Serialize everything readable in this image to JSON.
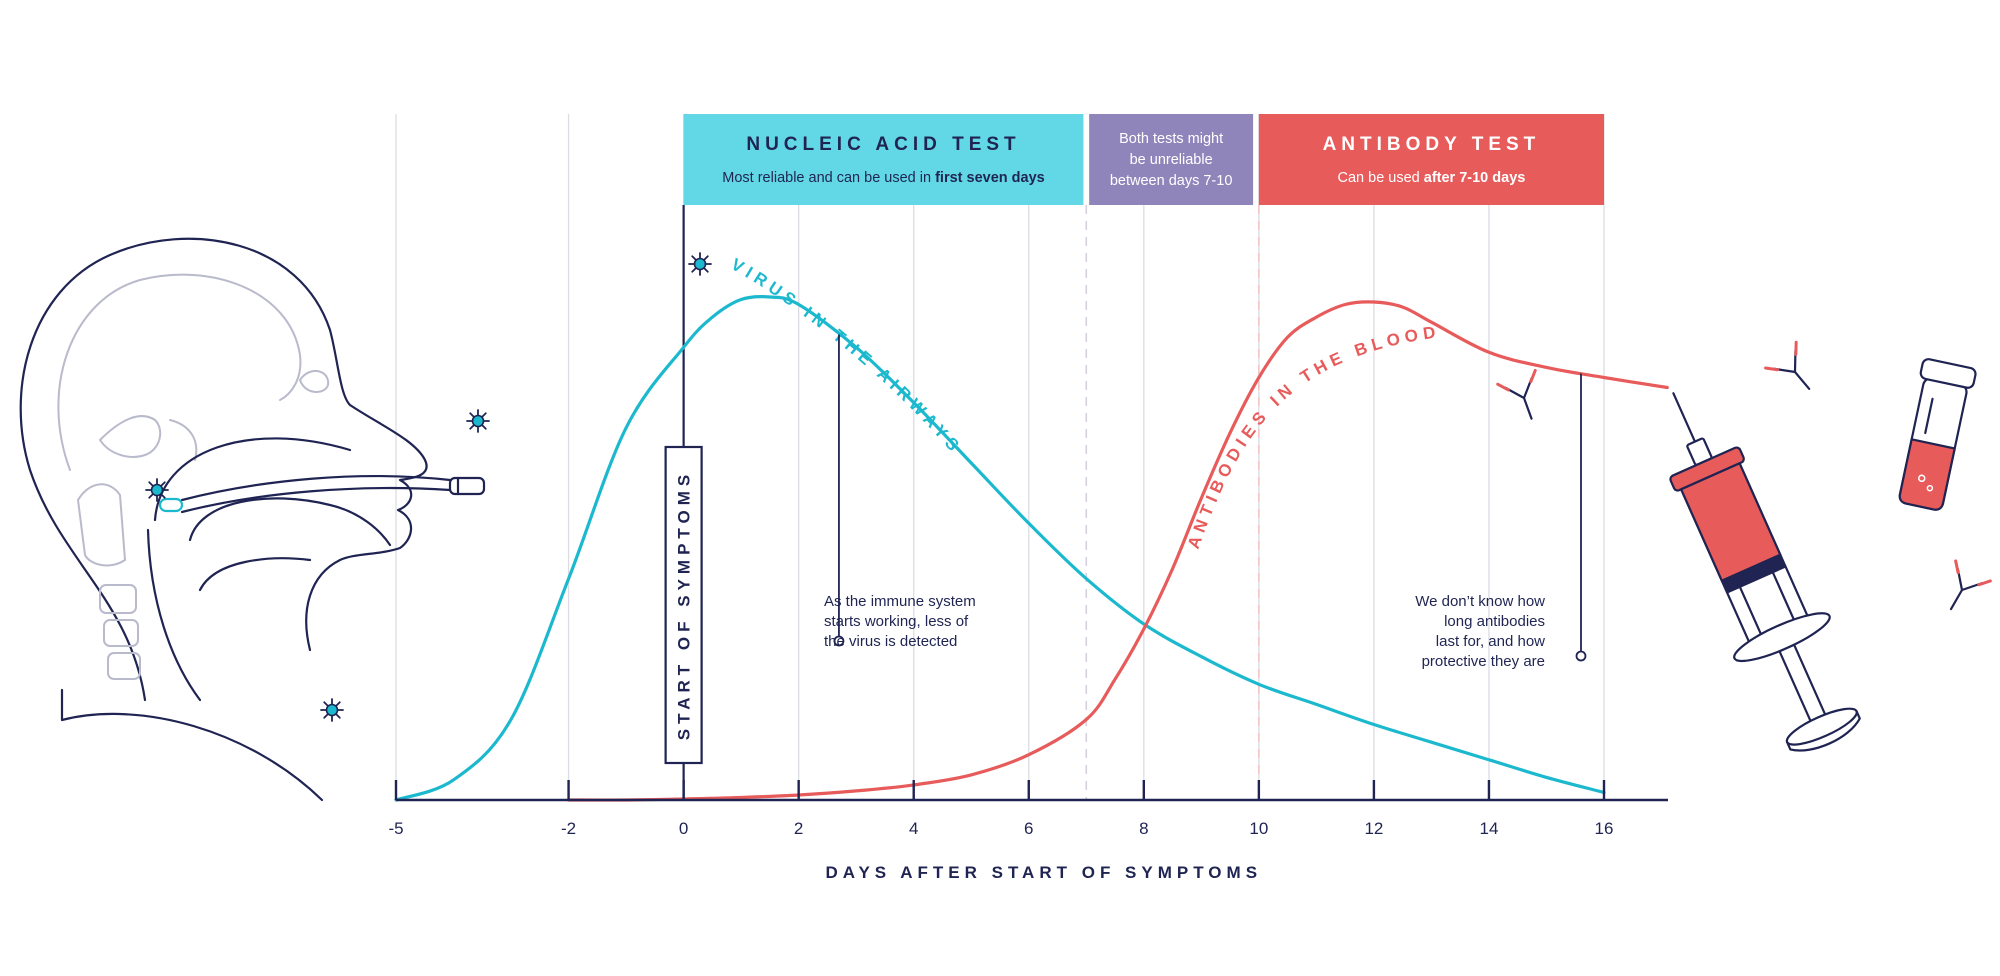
{
  "colors": {
    "navy": "#1f2452",
    "cyan": "#1cb9ce",
    "cyan_box": "#62d8e6",
    "purple_box": "#9085bb",
    "red": "#e85b5b",
    "grid": "#dcdde3"
  },
  "boxes": {
    "nucleic": {
      "title": "NUCLEIC ACID TEST",
      "sub_normal": "Most reliable and can be used in ",
      "sub_bold": "first seven days"
    },
    "both": {
      "line1": "Both tests might",
      "line2": "be unreliable",
      "line3": "between days 7-10"
    },
    "antibody": {
      "title": "ANTIBODY TEST",
      "sub_normal": "Can be used ",
      "sub_bold": "after 7-10 days"
    }
  },
  "start_label": "START OF SYMPTOMS",
  "annotations": {
    "immune": [
      "As the immune system",
      "starts working, less of",
      "the virus is detected"
    ],
    "antibodies": [
      "We don’t know how",
      "long antibodies",
      "last for, and how",
      "protective they are"
    ]
  },
  "icons": [
    "head-profile-icon",
    "nasal-swab-icon",
    "virus-icon",
    "antibody-icon",
    "syringe-icon",
    "blood-tube-icon"
  ],
  "chart_data": {
    "type": "line",
    "title": "",
    "xlabel": "DAYS AFTER START OF SYMPTOMS",
    "ylabel": "",
    "xlim": [
      -5,
      17
    ],
    "ylim": [
      0,
      1
    ],
    "ticks": [
      -5,
      -2,
      0,
      2,
      4,
      6,
      8,
      10,
      12,
      14,
      16
    ],
    "tick_labels": [
      "-5",
      "-2",
      "0",
      "2",
      "4",
      "6",
      "8",
      "10",
      "12",
      "14",
      "16"
    ],
    "grid": true,
    "series": [
      {
        "name": "VIRUS IN THE AIRWAYS",
        "color": "#1cb9ce",
        "x": [
          -5,
          -4,
          -3,
          -2,
          -1,
          0,
          0.5,
          1,
          1.5,
          2,
          3,
          4,
          5,
          6,
          7,
          8,
          9,
          10,
          11,
          12,
          13,
          14,
          15,
          16
        ],
        "y": [
          0.0,
          0.04,
          0.16,
          0.44,
          0.74,
          0.9,
          0.96,
          0.995,
          1.0,
          0.985,
          0.9,
          0.79,
          0.67,
          0.55,
          0.44,
          0.35,
          0.285,
          0.23,
          0.19,
          0.15,
          0.115,
          0.08,
          0.045,
          0.015
        ]
      },
      {
        "name": "ANTIBODIES IN THE BLOOD",
        "color": "#e85b5b",
        "x": [
          -2,
          -1,
          0,
          1,
          2,
          3,
          4,
          5,
          6,
          7,
          7.5,
          8,
          8.5,
          9,
          9.5,
          10,
          10.5,
          11,
          11.5,
          12,
          12.5,
          13,
          14,
          15,
          16,
          17.1
        ],
        "y": [
          0.0,
          0.0,
          0.002,
          0.005,
          0.01,
          0.018,
          0.03,
          0.05,
          0.09,
          0.16,
          0.24,
          0.34,
          0.46,
          0.6,
          0.73,
          0.84,
          0.92,
          0.96,
          0.985,
          0.99,
          0.98,
          0.95,
          0.89,
          0.86,
          0.84,
          0.82
        ]
      }
    ],
    "annotations": [
      {
        "label": "START OF SYMPTOMS",
        "x": 0
      },
      {
        "label": "Both tests might be unreliable between days 7-10",
        "x_range": [
          7,
          10
        ]
      }
    ]
  }
}
